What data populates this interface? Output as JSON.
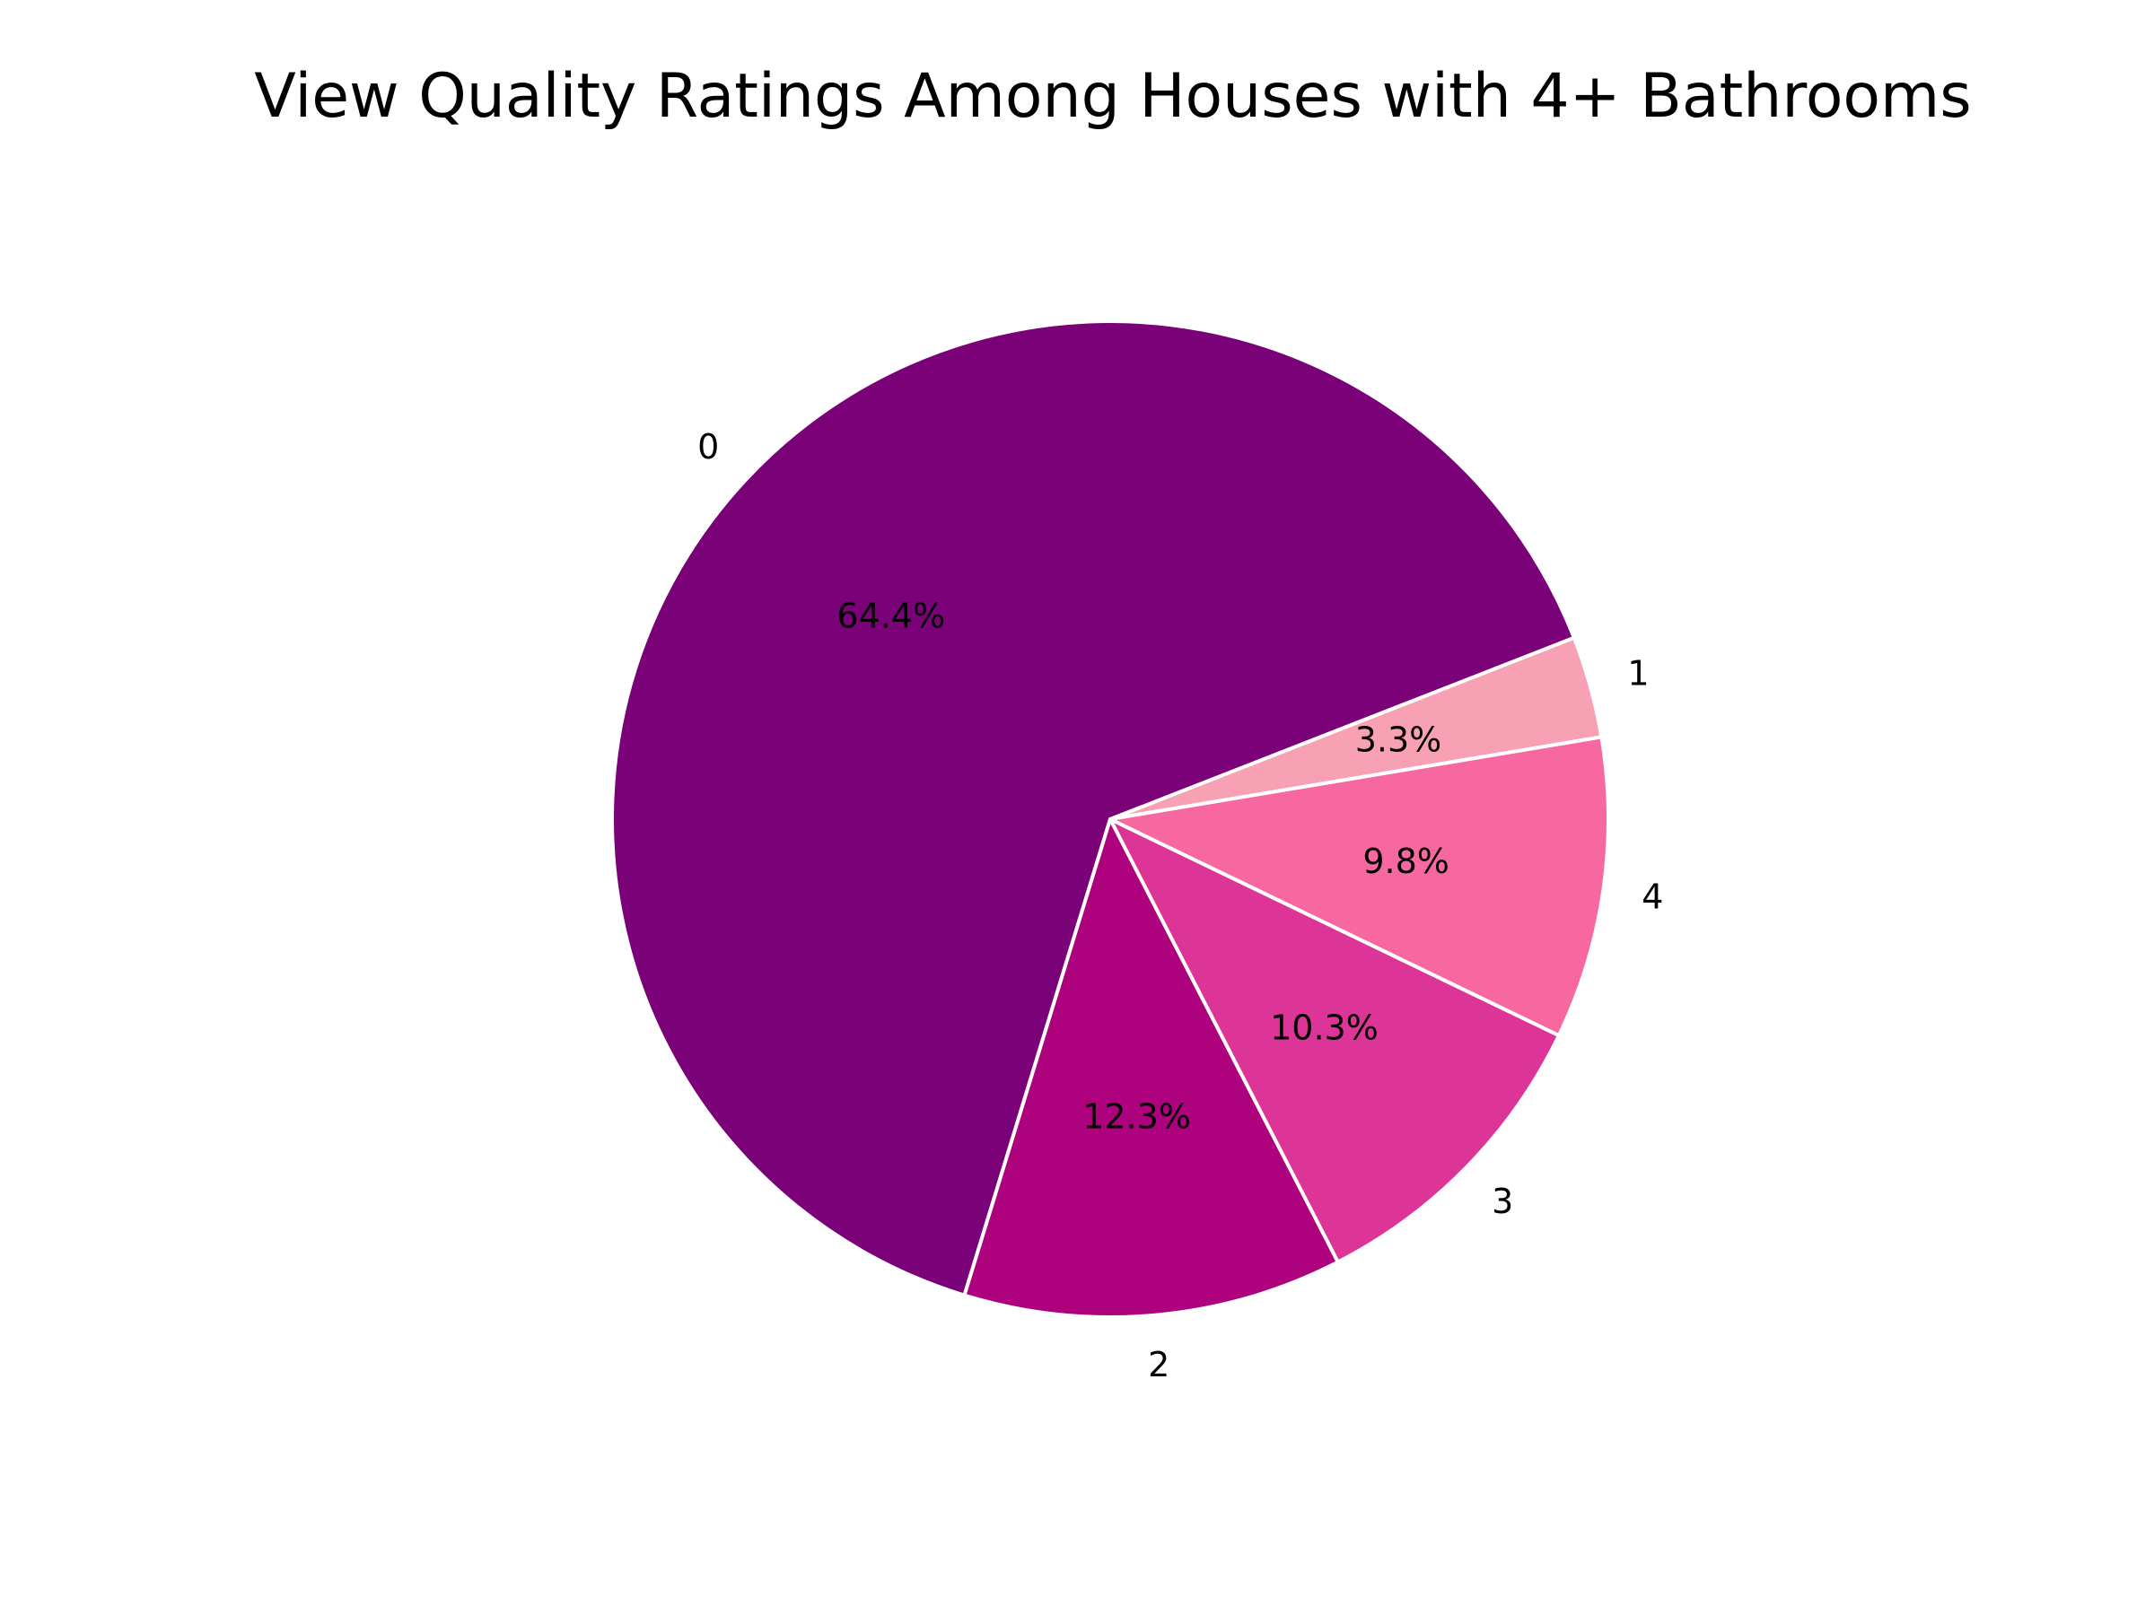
{
  "chart_data": {
    "type": "pie",
    "title": "View Quality Ratings Among Houses with 4+ Bathrooms",
    "categories": [
      "1",
      "0",
      "2",
      "3",
      "4"
    ],
    "values": [
      3.3,
      64.4,
      12.3,
      10.3,
      9.8
    ],
    "value_labels": [
      "3.3%",
      "64.4%",
      "12.3%",
      "10.3%",
      "9.8%"
    ],
    "colors": [
      "#f9a1b4",
      "#7a0177",
      "#ae017e",
      "#dd3497",
      "#f768a1"
    ],
    "edge_color": "#ffffff",
    "start_angle_deg": 9.5,
    "direction": "counterclockwise",
    "legend": "none"
  }
}
